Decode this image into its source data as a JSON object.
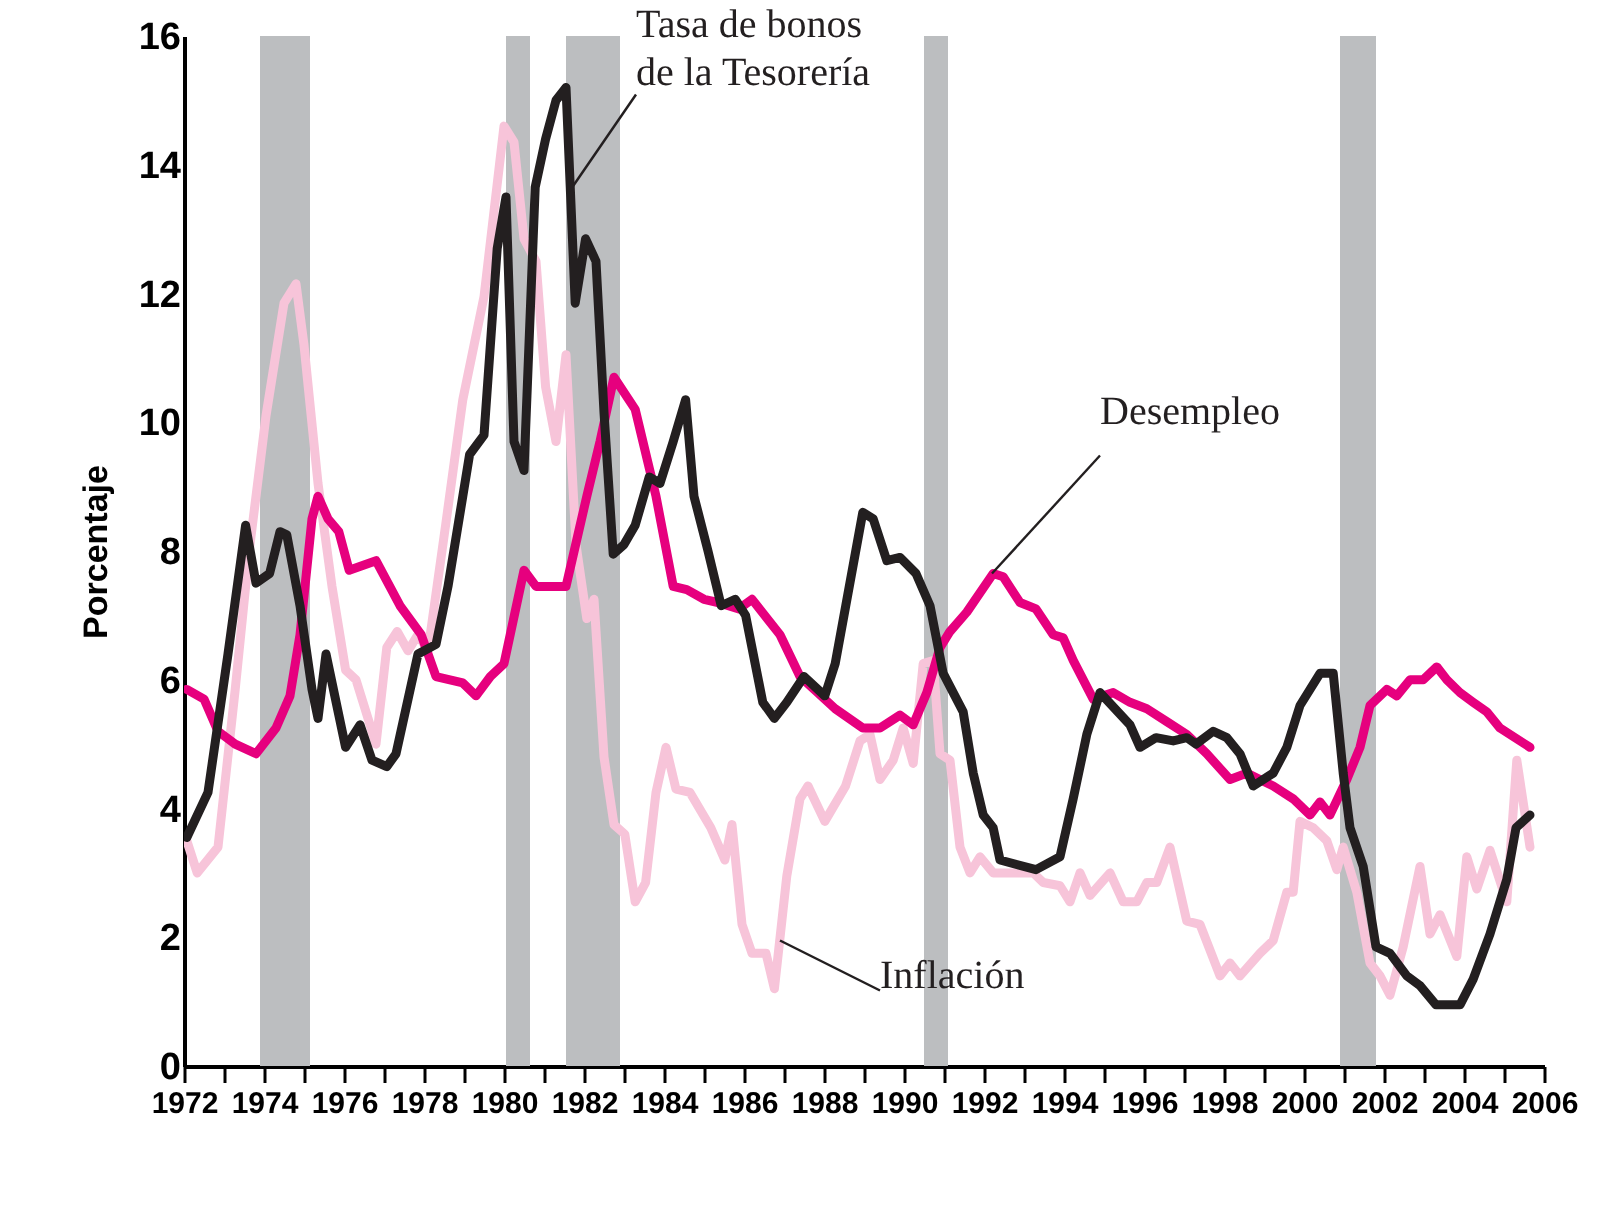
{
  "chart_data": {
    "type": "line",
    "ylabel": "Porcentaje",
    "xlim": [
      1972,
      2006
    ],
    "ylim": [
      0,
      16
    ],
    "xticks": [
      1972,
      {
        "value": 1973,
        "label": null
      },
      1974,
      {
        "value": 1975,
        "label": null
      },
      1976,
      {
        "value": 1977,
        "label": null
      },
      1978,
      {
        "value": 1979,
        "label": null
      },
      1980,
      {
        "value": 1981,
        "label": null
      },
      1982,
      {
        "value": 1983,
        "label": null
      },
      1984,
      {
        "value": 1985,
        "label": null
      },
      1986,
      {
        "value": 1987,
        "label": null
      },
      1988,
      {
        "value": 1989,
        "label": null
      },
      1990,
      {
        "value": 1991,
        "label": null
      },
      1992,
      {
        "value": 1993,
        "label": null
      },
      1994,
      {
        "value": 1995,
        "label": null
      },
      1996,
      {
        "value": 1997,
        "label": null
      },
      1998,
      {
        "value": 1999,
        "label": null
      },
      2000,
      {
        "value": 2001,
        "label": null
      },
      2002,
      {
        "value": 2003,
        "label": null
      },
      2004,
      {
        "value": 2005,
        "label": null
      },
      2006
    ],
    "yticks": [
      0,
      2,
      4,
      6,
      8,
      10,
      12,
      14,
      16
    ],
    "grid": false,
    "marker": "none",
    "line_style": "solid",
    "bands": [
      {
        "axis": "x",
        "from": 1973.9,
        "to": 1975.15,
        "color": "#bcbec0"
      },
      {
        "axis": "x",
        "from": 1980.05,
        "to": 1980.65,
        "color": "#bcbec0"
      },
      {
        "axis": "x",
        "from": 1981.55,
        "to": 1982.9,
        "color": "#bcbec0"
      },
      {
        "axis": "x",
        "from": 1990.5,
        "to": 1991.1,
        "color": "#bcbec0"
      },
      {
        "axis": "x",
        "from": 2000.9,
        "to": 2001.8,
        "color": "#bcbec0"
      }
    ],
    "annotations": [
      {
        "text": "Tasa de bonos\nde la Tesorería",
        "x": 1981.65,
        "y": 13.6
      },
      {
        "text": "Desempleo",
        "x": 1992.2,
        "y": 7.65
      },
      {
        "text": "Inflación",
        "x": 1986.9,
        "y": 1.95
      }
    ],
    "series": [
      {
        "color": "#f7c4d9",
        "x": [
          1972.07,
          1972.33,
          1972.85,
          1973.28,
          1973.63,
          1974.05,
          1974.5,
          1974.8,
          1975.0,
          1975.35,
          1975.7,
          1976.04,
          1976.3,
          1976.8,
          1977.07,
          1977.33,
          1977.6,
          1977.85,
          1978.1,
          1978.54,
          1978.97,
          1979.5,
          1980.0,
          1980.25,
          1980.5,
          1980.8,
          1981.04,
          1981.3,
          1981.55,
          1981.8,
          1982.07,
          1982.25,
          1982.5,
          1982.75,
          1983.02,
          1983.28,
          1983.54,
          1983.8,
          1984.05,
          1984.3,
          1984.65,
          1985.17,
          1985.52,
          1985.7,
          1985.95,
          1986.2,
          1986.55,
          1986.76,
          1987.07,
          1987.4,
          1987.6,
          1988.02,
          1988.54,
          1988.9,
          1989.15,
          1989.4,
          1989.73,
          1989.98,
          1990.23,
          1990.48,
          1990.73,
          1990.9,
          1991.15,
          1991.4,
          1991.65,
          1991.9,
          1992.23,
          1993.23,
          1993.48,
          1993.9,
          1994.15,
          1994.4,
          1994.65,
          1995.15,
          1995.48,
          1995.82,
          1996.07,
          1996.32,
          1996.65,
          1997.07,
          1997.4,
          1997.9,
          1998.15,
          1998.4,
          1998.9,
          1999.23,
          1999.57,
          1999.73,
          1999.9,
          2000.23,
          2000.57,
          2000.82,
          2000.98,
          2001.32,
          2001.65,
          2001.9,
          2002.15,
          2002.48,
          2002.9,
          2003.15,
          2003.4,
          2003.82,
          2004.07,
          2004.32,
          2004.65,
          2005.07,
          2005.32,
          2005.65
        ],
        "values": [
          3.5,
          3.0,
          3.4,
          5.85,
          8.0,
          10.1,
          11.85,
          12.15,
          11.2,
          9.05,
          7.45,
          6.15,
          6.0,
          5.0,
          6.5,
          6.75,
          6.45,
          6.7,
          6.45,
          8.4,
          10.35,
          11.95,
          14.6,
          14.35,
          12.85,
          12.5,
          10.55,
          9.7,
          11.05,
          8.1,
          6.95,
          7.25,
          4.8,
          3.75,
          3.6,
          2.55,
          2.85,
          4.25,
          4.95,
          4.3,
          4.25,
          3.7,
          3.2,
          3.75,
          2.2,
          1.75,
          1.75,
          1.2,
          2.95,
          4.15,
          4.35,
          3.8,
          4.35,
          5.05,
          5.15,
          4.45,
          4.75,
          5.25,
          4.7,
          6.25,
          6.3,
          4.85,
          4.75,
          3.4,
          3.0,
          3.25,
          3.0,
          3.0,
          2.85,
          2.8,
          2.55,
          3.0,
          2.65,
          3.0,
          2.55,
          2.55,
          2.85,
          2.85,
          3.4,
          2.25,
          2.2,
          1.4,
          1.6,
          1.4,
          1.75,
          1.95,
          2.7,
          2.7,
          3.8,
          3.7,
          3.5,
          3.05,
          3.4,
          2.7,
          1.6,
          1.4,
          1.1,
          1.85,
          3.1,
          2.05,
          2.35,
          1.7,
          3.25,
          2.75,
          3.35,
          2.55,
          4.75,
          3.4
        ]
      },
      {
        "color": "#e6007e",
        "x": [
          1972.07,
          1972.5,
          1972.85,
          1973.28,
          1973.8,
          1974.3,
          1974.65,
          1974.9,
          1975.2,
          1975.35,
          1975.6,
          1975.87,
          1976.13,
          1976.8,
          1977.4,
          1977.93,
          1978.3,
          1978.97,
          1979.3,
          1979.66,
          1980.0,
          1980.5,
          1980.8,
          1981.55,
          1982.07,
          1982.4,
          1982.75,
          1983.28,
          1983.8,
          1984.23,
          1984.57,
          1985.0,
          1985.35,
          1985.87,
          1986.2,
          1986.9,
          1987.4,
          1988.28,
          1988.97,
          1989.4,
          1989.9,
          1990.23,
          1990.57,
          1990.9,
          1991.15,
          1991.57,
          1992.23,
          1992.48,
          1992.9,
          1993.3,
          1993.73,
          1993.98,
          1994.23,
          1994.73,
          1995.23,
          1995.65,
          1996.07,
          1996.57,
          1997.07,
          1997.57,
          1998.15,
          1998.57,
          1999.23,
          1999.73,
          2000.15,
          2000.4,
          2000.65,
          2001.07,
          2001.4,
          2001.65,
          2002.07,
          2002.32,
          2002.65,
          2002.98,
          2003.32,
          2003.57,
          2003.9,
          2004.23,
          2004.57,
          2004.9,
          2005.65
        ],
        "values": [
          5.85,
          5.7,
          5.2,
          5.0,
          4.85,
          5.25,
          5.75,
          6.7,
          8.5,
          8.85,
          8.5,
          8.3,
          7.7,
          7.85,
          7.15,
          6.7,
          6.05,
          5.95,
          5.75,
          6.05,
          6.25,
          7.7,
          7.45,
          7.45,
          8.85,
          9.7,
          10.7,
          10.2,
          8.85,
          7.45,
          7.4,
          7.25,
          7.2,
          7.1,
          7.25,
          6.7,
          6.05,
          5.55,
          5.25,
          5.25,
          5.45,
          5.3,
          5.8,
          6.5,
          6.75,
          7.05,
          7.65,
          7.6,
          7.2,
          7.1,
          6.7,
          6.65,
          6.3,
          5.7,
          5.8,
          5.65,
          5.55,
          5.35,
          5.15,
          4.85,
          4.45,
          4.55,
          4.35,
          4.15,
          3.9,
          4.1,
          3.9,
          4.45,
          4.95,
          5.6,
          5.85,
          5.75,
          6.0,
          6.0,
          6.2,
          6.0,
          5.8,
          5.65,
          5.5,
          5.25,
          4.95
        ]
      },
      {
        "color": "#231f20",
        "x": [
          1972.07,
          1972.6,
          1973.1,
          1973.54,
          1973.8,
          1974.14,
          1974.4,
          1974.57,
          1974.9,
          1975.2,
          1975.35,
          1975.55,
          1976.04,
          1976.4,
          1976.7,
          1977.07,
          1977.3,
          1977.85,
          1978.3,
          1978.6,
          1978.97,
          1979.14,
          1979.5,
          1979.83,
          1980.05,
          1980.25,
          1980.5,
          1980.78,
          1981.04,
          1981.3,
          1981.55,
          1981.78,
          1982.04,
          1982.3,
          1982.5,
          1982.73,
          1983.0,
          1983.28,
          1983.63,
          1983.9,
          1984.23,
          1984.54,
          1984.75,
          1985.1,
          1985.43,
          1985.78,
          1986.04,
          1986.47,
          1986.76,
          1987.07,
          1987.5,
          1988.02,
          1988.28,
          1988.97,
          1989.23,
          1989.57,
          1989.9,
          1990.3,
          1990.65,
          1990.98,
          1991.48,
          1991.73,
          1991.98,
          1992.23,
          1992.4,
          1993.3,
          1993.9,
          1994.23,
          1994.57,
          1994.9,
          1995.65,
          1995.9,
          1996.3,
          1996.73,
          1997.07,
          1997.3,
          1997.73,
          1998.07,
          1998.4,
          1998.73,
          1999.23,
          1999.57,
          1999.9,
          2000.4,
          2000.73,
          2000.98,
          2001.15,
          2001.48,
          2001.8,
          2002.15,
          2002.57,
          2002.9,
          2003.3,
          2003.9,
          2004.23,
          2004.65,
          2005.07,
          2005.3,
          2005.65
        ],
        "values": [
          3.55,
          4.25,
          6.4,
          8.4,
          7.5,
          7.65,
          8.3,
          8.25,
          7.15,
          5.85,
          5.4,
          6.4,
          4.95,
          5.3,
          4.75,
          4.65,
          4.85,
          6.4,
          6.55,
          7.45,
          8.85,
          9.5,
          9.8,
          12.7,
          13.5,
          9.7,
          9.25,
          13.65,
          14.4,
          15.0,
          15.2,
          11.85,
          12.85,
          12.5,
          10.15,
          7.95,
          8.1,
          8.4,
          9.15,
          9.05,
          9.7,
          10.35,
          8.85,
          8.0,
          7.15,
          7.25,
          7.0,
          5.65,
          5.4,
          5.65,
          6.05,
          5.75,
          6.25,
          8.6,
          8.5,
          7.85,
          7.9,
          7.65,
          7.15,
          6.1,
          5.5,
          4.55,
          3.9,
          3.7,
          3.2,
          3.05,
          3.25,
          4.15,
          5.15,
          5.8,
          5.3,
          4.95,
          5.1,
          5.05,
          5.1,
          5.0,
          5.2,
          5.1,
          4.85,
          4.35,
          4.55,
          4.95,
          5.6,
          6.1,
          6.1,
          4.55,
          3.7,
          3.1,
          1.85,
          1.75,
          1.4,
          1.25,
          0.95,
          0.95,
          1.35,
          2.05,
          2.9,
          3.7,
          3.9
        ]
      }
    ]
  }
}
